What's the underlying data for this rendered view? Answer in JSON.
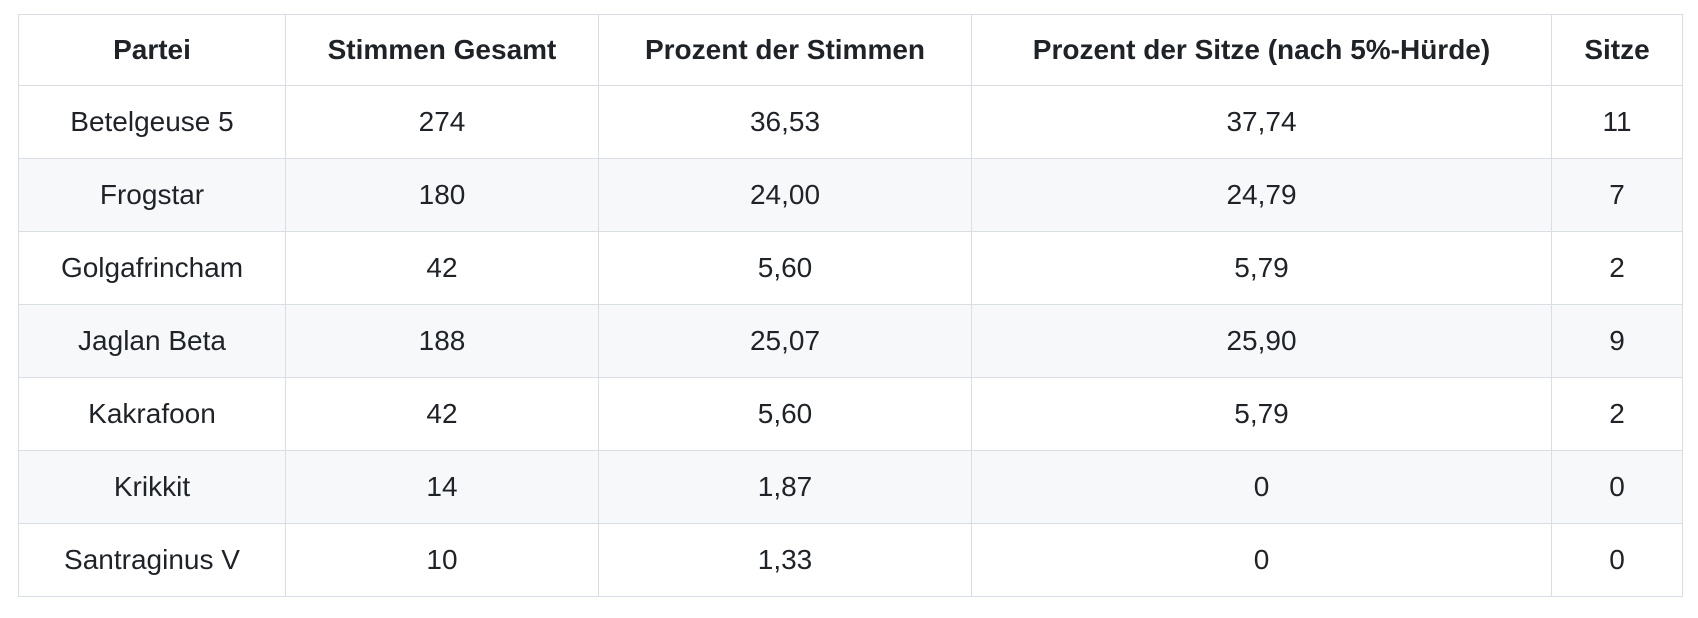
{
  "chart_data": {
    "type": "table",
    "columns": [
      "Partei",
      "Stimmen Gesamt",
      "Prozent der Stimmen",
      "Prozent der Sitze (nach 5%-Hürde)",
      "Sitze"
    ],
    "rows": [
      [
        "Betelgeuse 5",
        "274",
        "36,53",
        "37,74",
        "11"
      ],
      [
        "Frogstar",
        "180",
        "24,00",
        "24,79",
        "7"
      ],
      [
        "Golgafrincham",
        "42",
        "5,60",
        "5,79",
        "2"
      ],
      [
        "Jaglan Beta",
        "188",
        "25,07",
        "25,90",
        "9"
      ],
      [
        "Kakrafoon",
        "42",
        "5,60",
        "5,79",
        "2"
      ],
      [
        "Krikkit",
        "14",
        "1,87",
        "0",
        "0"
      ],
      [
        "Santraginus V",
        "10",
        "1,33",
        "0",
        "0"
      ]
    ],
    "layout": {
      "zebra_striping": true,
      "text_align": "center"
    }
  },
  "colors": {
    "text": "#1f2328",
    "border": "#d8dee4",
    "stripe_row_background": "#f6f8fa",
    "background": "#ffffff"
  }
}
